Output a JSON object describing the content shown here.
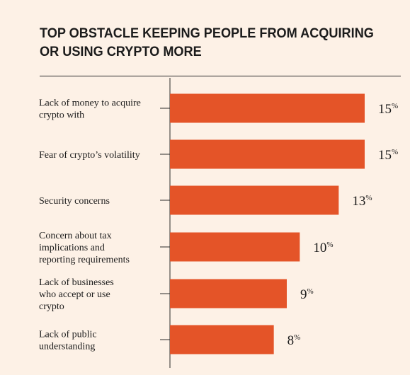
{
  "chart_data": {
    "type": "bar",
    "orientation": "horizontal",
    "title": "TOP OBSTACLE KEEPING PEOPLE FROM ACQUIRING OR USING CRYPTO MORE",
    "categories": [
      [
        "Lack of money to acquire",
        "crypto with"
      ],
      [
        "Fear of crypto’s volatility"
      ],
      [
        "Security concerns"
      ],
      [
        "Concern about tax",
        "implications and",
        "reporting requirements"
      ],
      [
        "Lack of businesses",
        "who accept or use",
        "crypto"
      ],
      [
        "Lack of public",
        "understanding"
      ]
    ],
    "values": [
      15,
      15,
      13,
      10,
      9,
      8
    ],
    "value_labels": [
      "15",
      "15",
      "13",
      "10",
      "9",
      "8"
    ],
    "unit": "%",
    "xlim": [
      0,
      15
    ],
    "bar_color": "#e45428",
    "text_color": "#1b1b1b",
    "background_color": "#fdf1e6",
    "grid": false,
    "legend": "none"
  }
}
